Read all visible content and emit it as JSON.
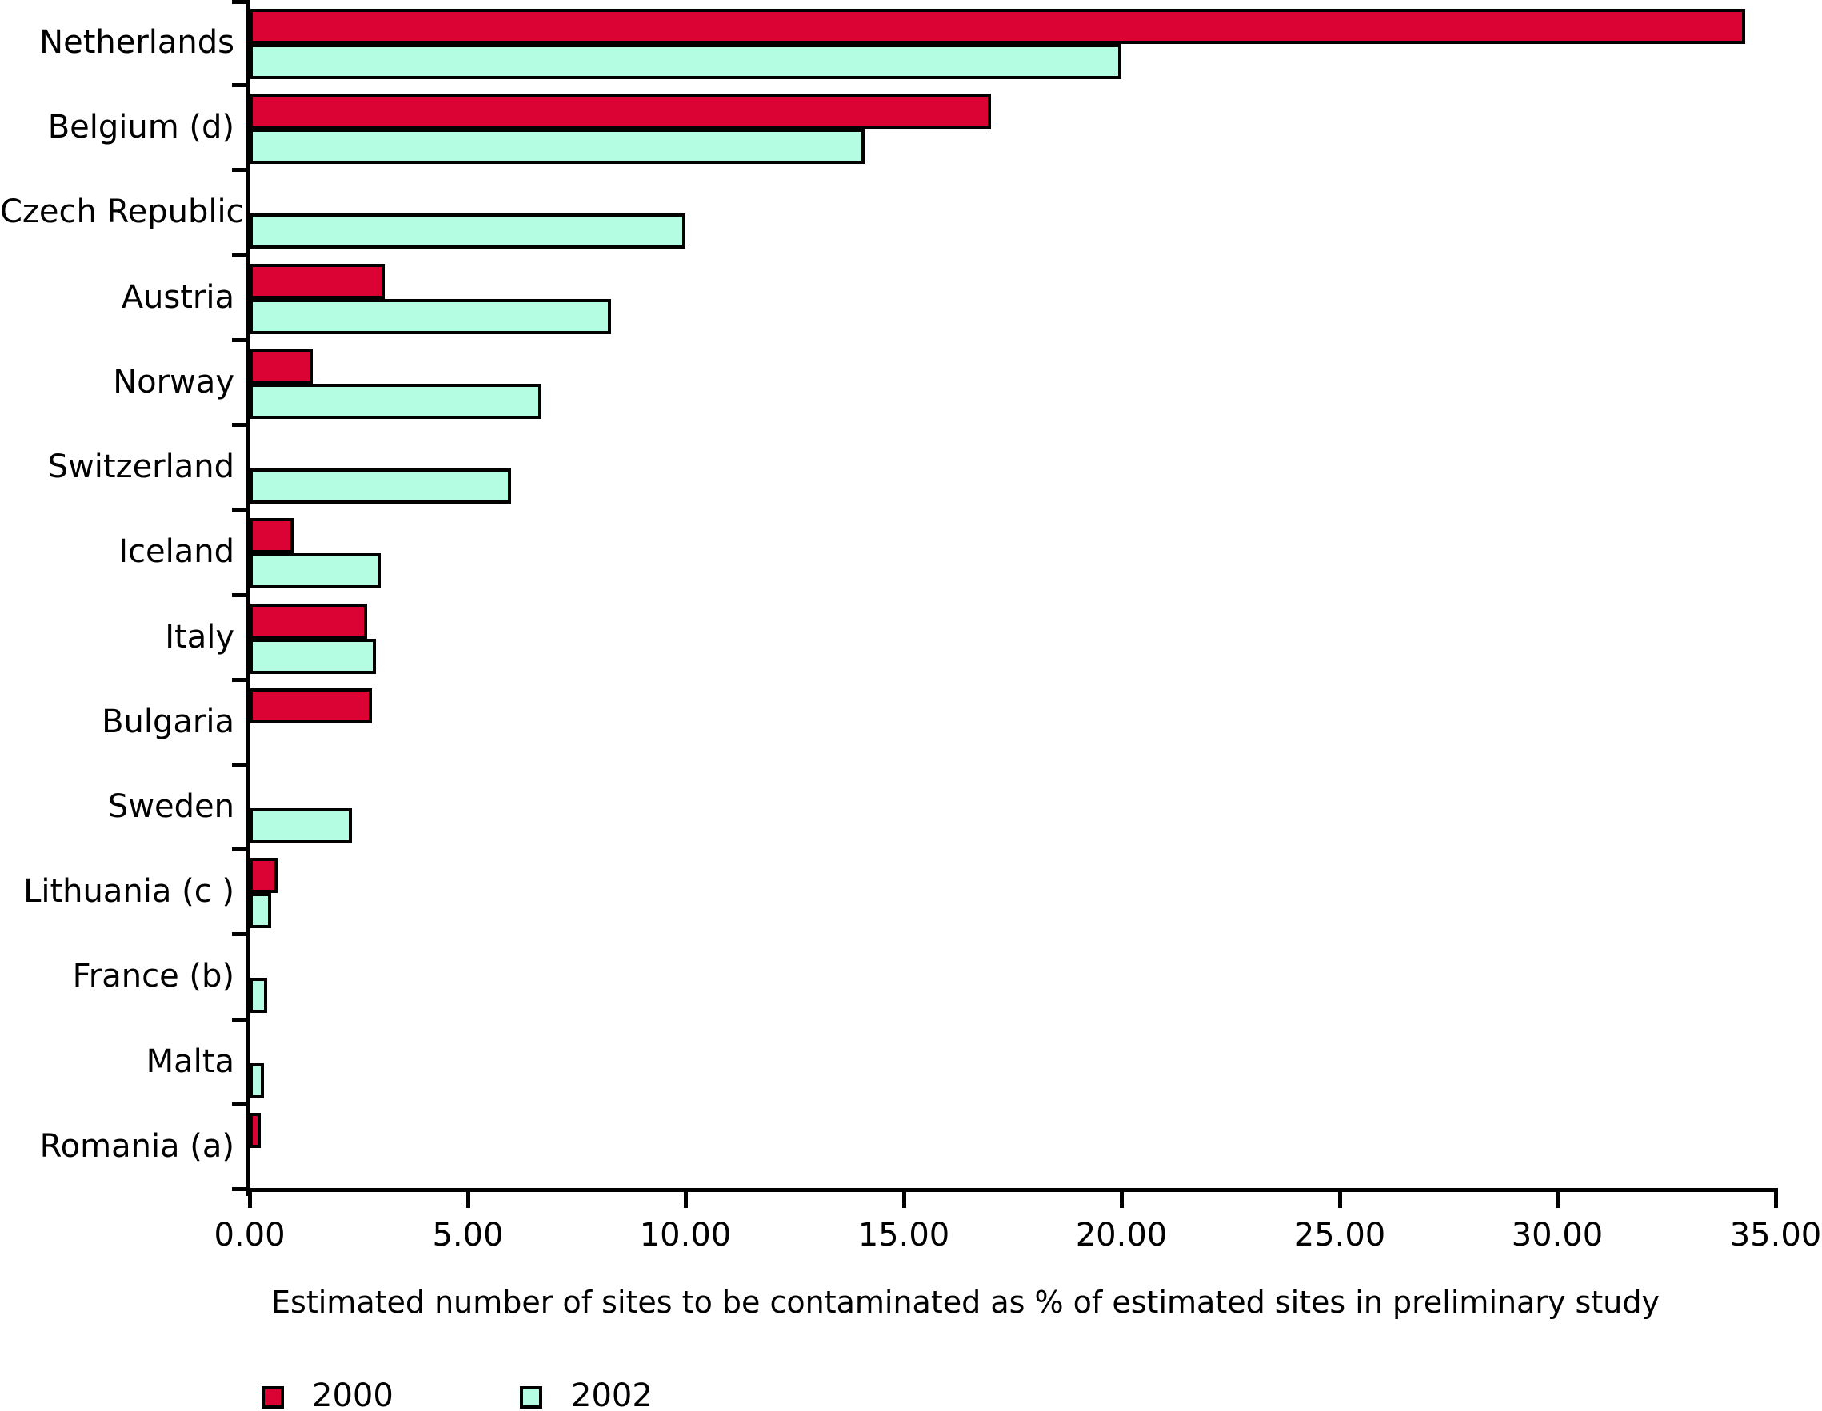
{
  "chart_data": {
    "type": "bar",
    "orientation": "horizontal",
    "title": "",
    "xlabel": "Estimated number of sites to be contaminated as % of estimated sites in preliminary study",
    "ylabel": "",
    "xlim": [
      0,
      35
    ],
    "xtick_labels": [
      "0.00",
      "5.00",
      "10.00",
      "15.00",
      "20.00",
      "25.00",
      "30.00",
      "35.00"
    ],
    "grid": false,
    "legend_position": "bottom-left",
    "categories": [
      "Netherlands",
      "Belgium (d)",
      "Czech Republic",
      "Austria",
      "Norway",
      "Switzerland",
      "Iceland",
      "Italy",
      "Bulgaria",
      "Sweden",
      "Lithuania (c )",
      "France (b)",
      "Malta",
      "Romania (a)"
    ],
    "series": [
      {
        "name": "2000",
        "color": "#DB0234",
        "values": [
          34.3,
          17.0,
          null,
          3.1,
          1.45,
          null,
          1.0,
          2.7,
          2.8,
          null,
          0.65,
          null,
          null,
          0.25
        ]
      },
      {
        "name": "2002",
        "color": "#B4FDE2",
        "values": [
          20.0,
          14.1,
          10.0,
          8.3,
          6.7,
          6.0,
          3.0,
          2.9,
          null,
          2.35,
          0.5,
          0.4,
          0.33,
          null
        ]
      }
    ]
  }
}
